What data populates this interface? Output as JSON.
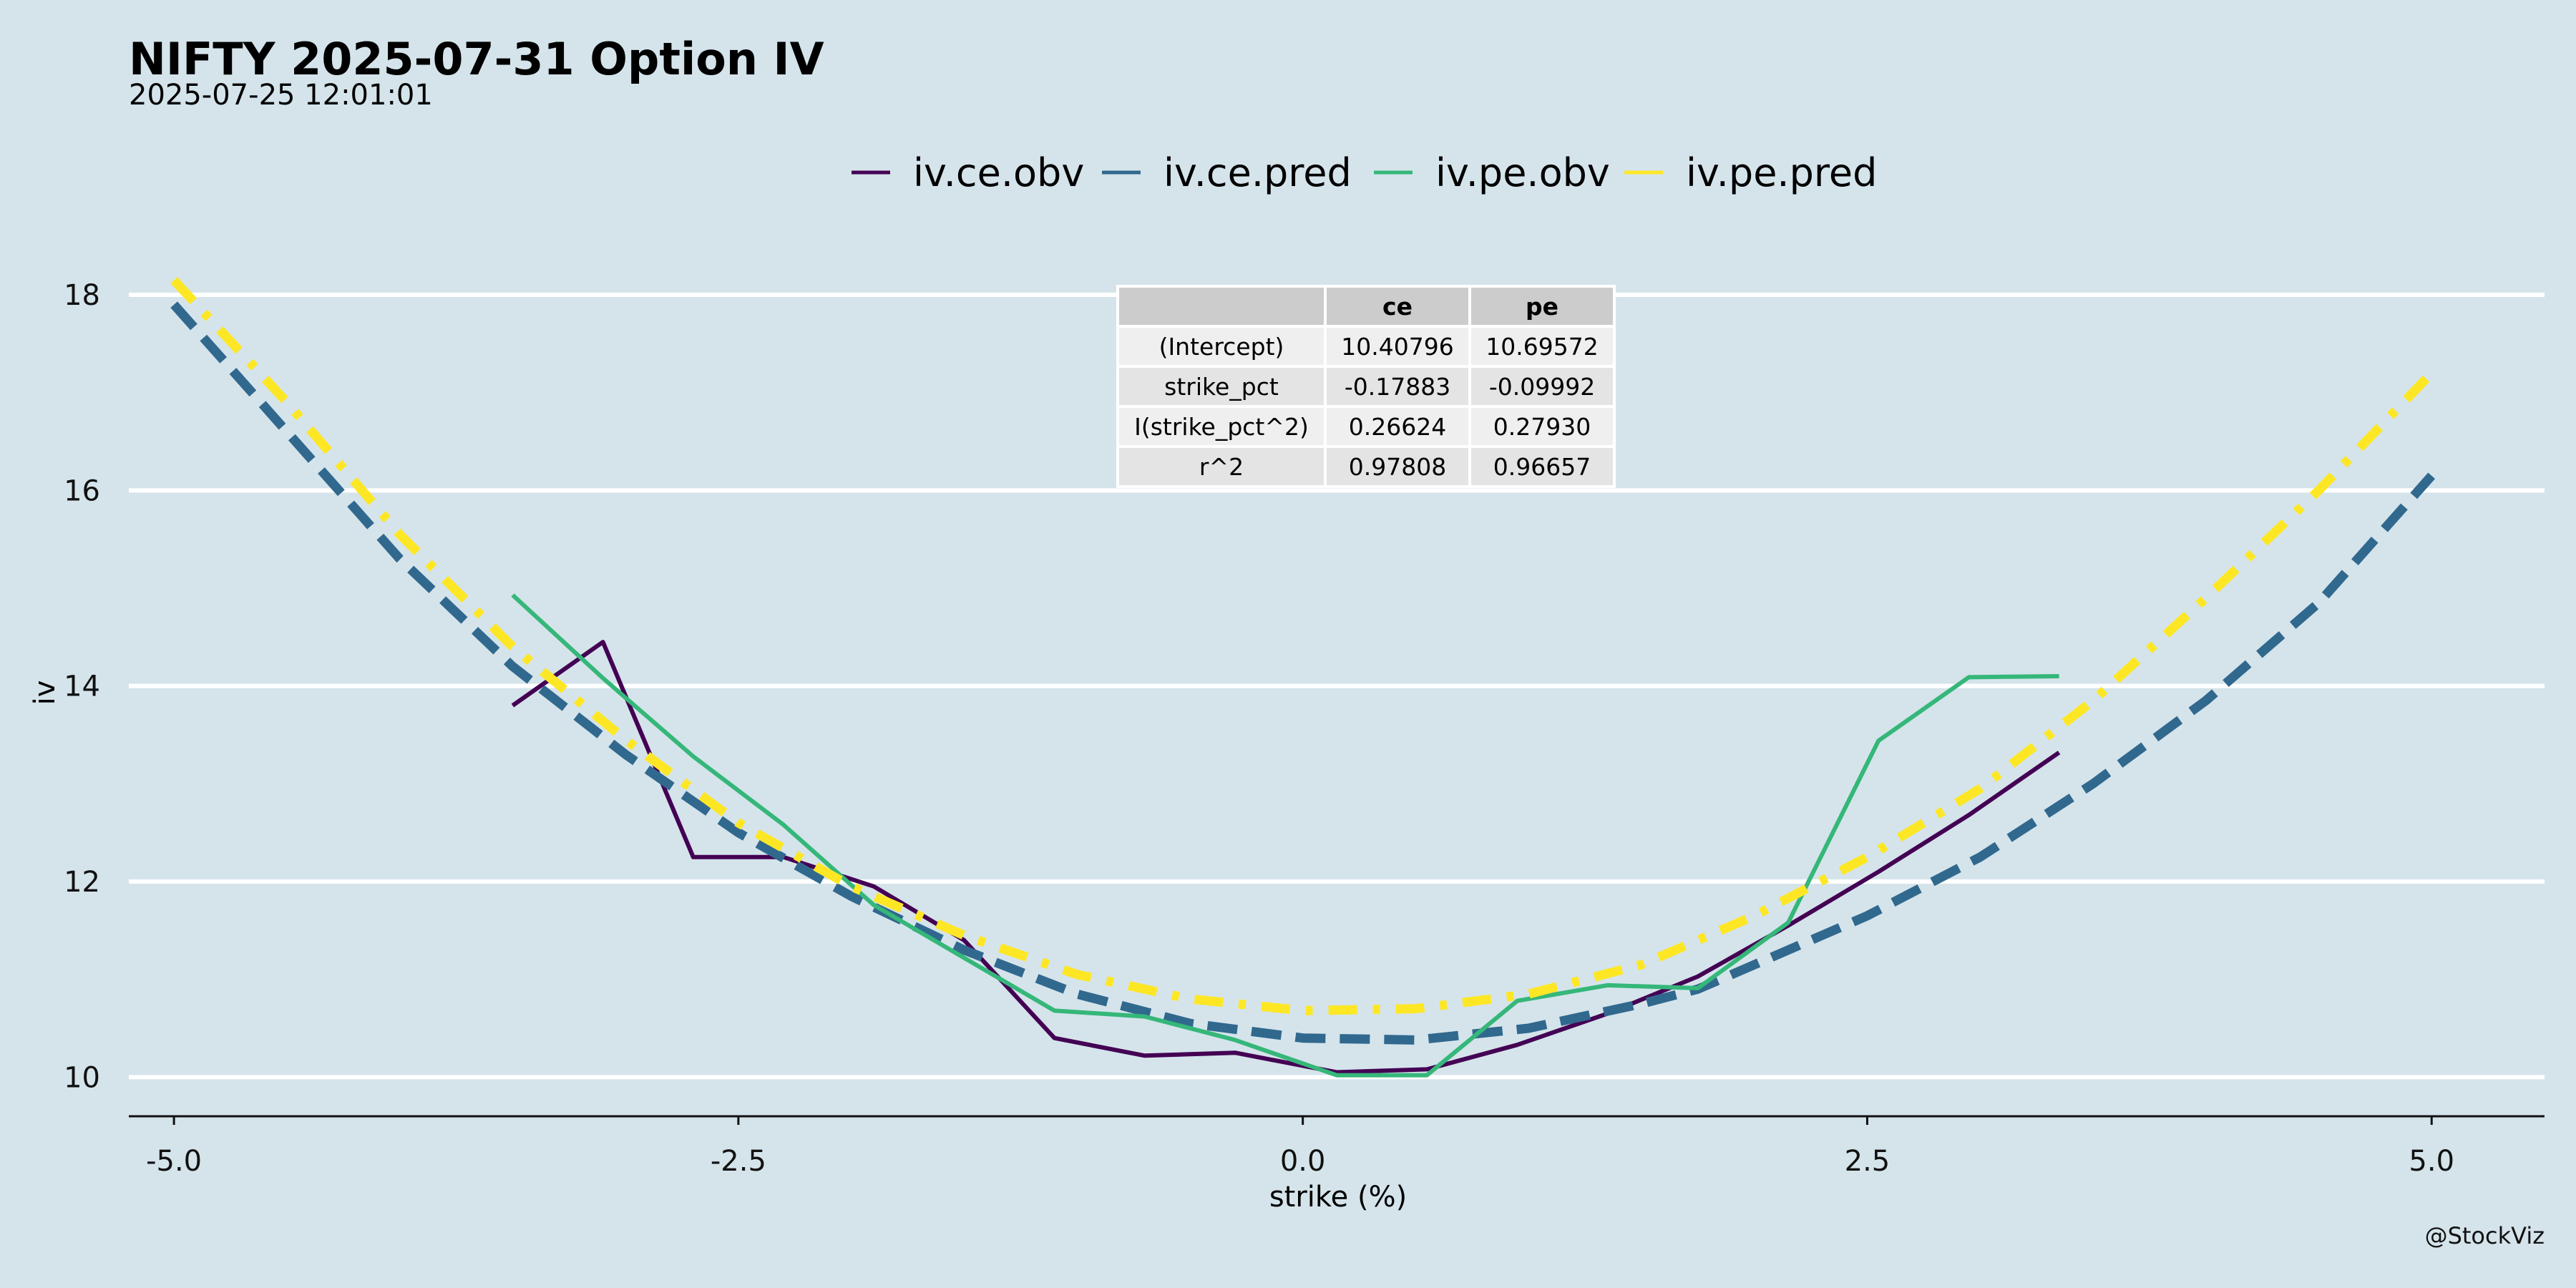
{
  "chart_data": {
    "type": "line",
    "title": "NIFTY 2025-07-31 Option IV",
    "subtitle": "2025-07-25 12:01:01",
    "xlabel": "strike (%)",
    "ylabel": "iv",
    "caption": "@StockViz",
    "xlim": [
      -5.2,
      5.5
    ],
    "ylim": [
      9.6,
      18.6
    ],
    "x_ticks": [
      -5.0,
      -2.5,
      0.0,
      2.5,
      5.0
    ],
    "x_tick_labels": [
      "-5.0",
      "-2.5",
      "0.0",
      "2.5",
      "5.0"
    ],
    "y_ticks": [
      10,
      12,
      14,
      16,
      18
    ],
    "y_tick_labels": [
      "10",
      "12",
      "14",
      "16",
      "18"
    ],
    "grid": "horizontal",
    "legend_position": "top",
    "series": [
      {
        "name": "iv.ce.obv",
        "color": "#440154",
        "style": "solid",
        "x": [
          -3.5,
          -3.1,
          -2.7,
          -2.3,
          -1.9,
          -1.5,
          -1.1,
          -0.7,
          -0.3,
          0.15,
          0.55,
          0.95,
          1.35,
          1.75,
          2.15,
          2.55,
          2.95,
          3.35
        ],
        "y": [
          13.8,
          14.45,
          12.25,
          12.25,
          11.95,
          11.4,
          10.4,
          10.22,
          10.25,
          10.05,
          10.08,
          10.33,
          10.65,
          11.03,
          11.55,
          12.1,
          12.68,
          13.32
        ]
      },
      {
        "name": "iv.ce.pred",
        "color": "#31688e",
        "style": "dashed",
        "x": [
          -5.0,
          -4.5,
          -4.0,
          -3.5,
          -3.0,
          -2.5,
          -2.0,
          -1.5,
          -1.0,
          -0.5,
          0.0,
          0.5,
          1.0,
          1.5,
          1.75,
          2.0,
          2.5,
          3.0,
          3.5,
          4.0,
          4.5,
          5.0
        ],
        "y": [
          17.9,
          16.6,
          15.3,
          14.2,
          13.3,
          12.5,
          11.85,
          11.3,
          10.85,
          10.55,
          10.4,
          10.38,
          10.5,
          10.75,
          10.9,
          11.15,
          11.65,
          12.25,
          13.0,
          13.85,
          14.85,
          16.15
        ]
      },
      {
        "name": "iv.pe.obv",
        "color": "#35b779",
        "style": "solid",
        "x": [
          -3.5,
          -3.1,
          -2.7,
          -2.3,
          -1.9,
          -1.5,
          -1.1,
          -0.7,
          -0.3,
          0.15,
          0.55,
          0.95,
          1.35,
          1.75,
          2.15,
          2.55,
          2.95,
          3.35
        ],
        "y": [
          14.93,
          14.08,
          13.28,
          12.58,
          11.76,
          11.22,
          10.68,
          10.62,
          10.38,
          10.02,
          10.02,
          10.78,
          10.94,
          10.91,
          11.58,
          13.44,
          14.09,
          14.1
        ]
      },
      {
        "name": "iv.pe.pred",
        "color": "#fde725",
        "style": "dashdot",
        "x": [
          -5.0,
          -4.5,
          -4.0,
          -3.5,
          -3.0,
          -2.5,
          -2.0,
          -1.5,
          -1.0,
          -0.5,
          0.0,
          0.5,
          1.0,
          1.5,
          2.0,
          2.5,
          3.0,
          3.5,
          4.0,
          4.5,
          5.0
        ],
        "y": [
          18.15,
          16.9,
          15.55,
          14.4,
          13.45,
          12.6,
          11.95,
          11.45,
          11.05,
          10.8,
          10.68,
          10.7,
          10.85,
          11.15,
          11.65,
          12.25,
          12.95,
          13.85,
          14.9,
          16.0,
          17.2
        ]
      }
    ],
    "coef_table": {
      "headers": [
        "",
        "ce",
        "pe"
      ],
      "rows": [
        [
          "(Intercept)",
          "10.40796",
          "10.69572"
        ],
        [
          "strike_pct",
          "-0.17883",
          "-0.09992"
        ],
        [
          "I(strike_pct^2)",
          "0.26624",
          "0.27930"
        ],
        [
          "r^2",
          "0.97808",
          "0.96657"
        ]
      ]
    }
  }
}
